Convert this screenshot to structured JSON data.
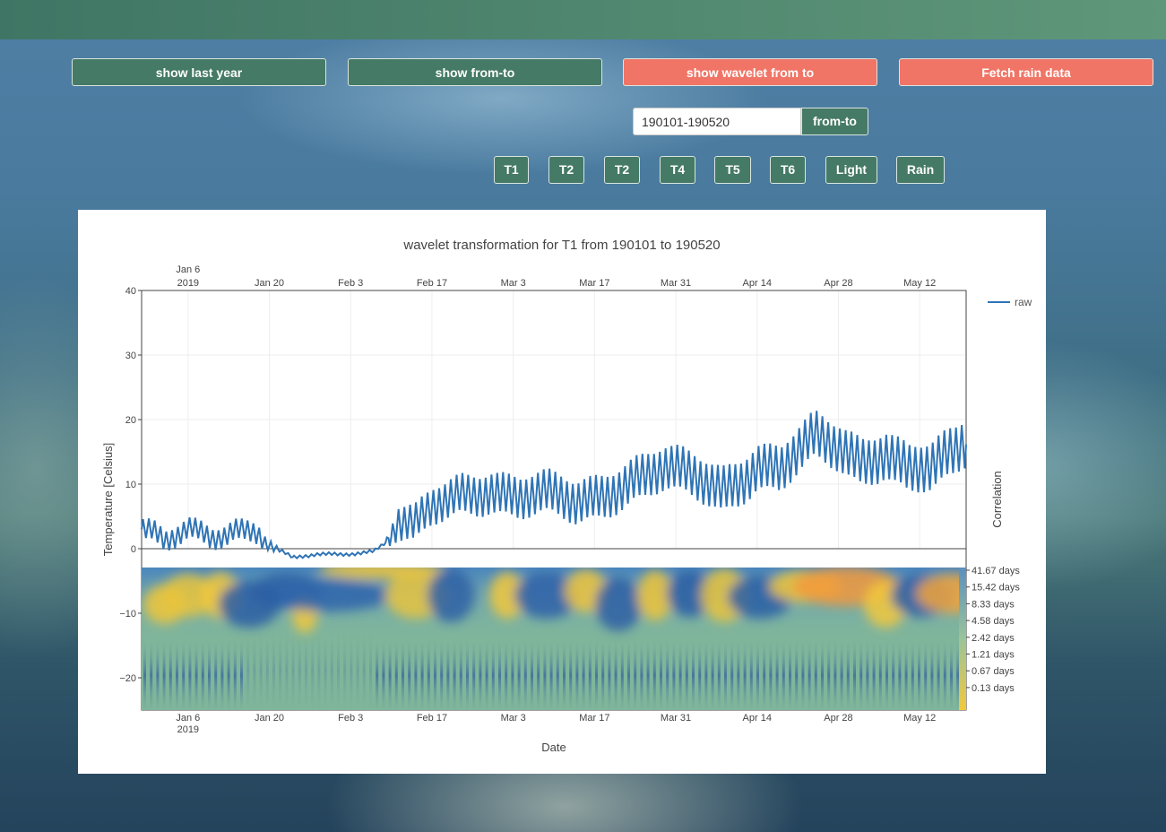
{
  "buttons": {
    "show_last_year": "show last year",
    "show_from_to": "show from-to",
    "show_wavelet": "show wavelet from to",
    "fetch_rain": "Fetch rain data"
  },
  "range": {
    "value": "190101-190520",
    "button": "from-to"
  },
  "channels": [
    "T1",
    "T2",
    "T2",
    "T4",
    "T5",
    "T6",
    "Light",
    "Rain"
  ],
  "colors": {
    "green": "#457a66",
    "salmon": "#f07566",
    "line": "#2f74b5"
  },
  "chart_data": {
    "type": "line",
    "title": "wavelet transformation for T1 from 190101 to 190520",
    "xlabel": "Date",
    "ylabel": "Temperature [Celsius]",
    "y2label": "Correlation",
    "x_ticks": [
      "Jan 6|2019",
      "Jan 20",
      "Feb 3",
      "Feb 17",
      "Mar 3",
      "Mar 17",
      "Mar 31",
      "Apr 14",
      "Apr 28",
      "May 12"
    ],
    "x_range": [
      "2018-12-29",
      "2019-05-20"
    ],
    "y_ticks": [
      40,
      30,
      20,
      10,
      0,
      -10,
      -20
    ],
    "ylim": [
      -25,
      40
    ],
    "period_ticks": [
      "41.67 days",
      "15.42 days",
      "8.33 days",
      "4.58 days",
      "2.42 days",
      "1.21 days",
      "0.67 days",
      "0.13 days"
    ],
    "legend": {
      "label": "raw",
      "position": "top-right"
    },
    "series": [
      {
        "name": "raw",
        "trend_days": [
          0,
          2,
          4,
          8,
          12,
          16,
          20,
          22,
          26,
          30,
          34,
          38,
          40,
          42,
          44,
          47,
          50,
          55,
          60,
          65,
          70,
          75,
          80,
          85,
          90,
          95,
          100,
          103,
          106,
          110,
          113,
          116,
          120,
          124,
          128,
          132,
          136,
          140,
          142
        ],
        "trend_values": [
          3,
          2,
          0.5,
          2.5,
          2,
          3.5,
          3,
          0.5,
          -1.5,
          -1,
          -0.8,
          -0.5,
          -0.3,
          1,
          4,
          3,
          6,
          8.5,
          9.5,
          8,
          8,
          7,
          9,
          11,
          12,
          11,
          9.5,
          11,
          13,
          12,
          14.5,
          17,
          16,
          14,
          15,
          12,
          12,
          15,
          17
        ],
        "amplitude_days": [
          0,
          20,
          24,
          42,
          44,
          60,
          140
        ],
        "amplitude_values": [
          1.5,
          1.5,
          0.2,
          0.2,
          2.5,
          3,
          3.5
        ]
      }
    ]
  }
}
